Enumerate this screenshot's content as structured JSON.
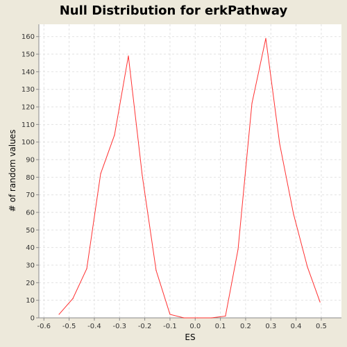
{
  "chart_data": {
    "type": "line",
    "title": "Null Distribution for erkPathway",
    "xlabel": "ES",
    "ylabel": "# of random values",
    "xlim": [
      -0.62,
      0.58
    ],
    "ylim": [
      0,
      167
    ],
    "xticks": [
      -0.6,
      -0.5,
      -0.4,
      -0.3,
      -0.2,
      -0.1,
      0.0,
      0.1,
      0.2,
      0.3,
      0.4,
      0.5
    ],
    "xtick_labels": [
      "-0.6",
      "-0.5",
      "-0.4",
      "-0.3",
      "-0.2",
      "-0.1",
      "0.0",
      "0.1",
      "0.2",
      "0.3",
      "0.4",
      "0.5"
    ],
    "yticks": [
      0,
      10,
      20,
      30,
      40,
      50,
      60,
      70,
      80,
      90,
      100,
      110,
      120,
      130,
      140,
      150,
      160
    ],
    "ytick_labels": [
      "0",
      "10",
      "20",
      "30",
      "40",
      "50",
      "60",
      "70",
      "80",
      "90",
      "100",
      "110",
      "120",
      "130",
      "140",
      "150",
      "160"
    ],
    "grid": true,
    "line_color": "#ff3030",
    "series": [
      {
        "x": [
          -0.54,
          -0.485,
          -0.43,
          -0.375,
          -0.32,
          -0.265,
          -0.21,
          -0.155,
          -0.1,
          -0.045,
          0.01,
          0.065,
          0.12,
          0.17,
          0.225,
          0.28,
          0.335,
          0.39,
          0.445,
          0.495
        ],
        "y": [
          2,
          11,
          28,
          82,
          104,
          149,
          81,
          27,
          2,
          0,
          0,
          0,
          1,
          39,
          122,
          159,
          99,
          59,
          29,
          9
        ]
      }
    ]
  }
}
